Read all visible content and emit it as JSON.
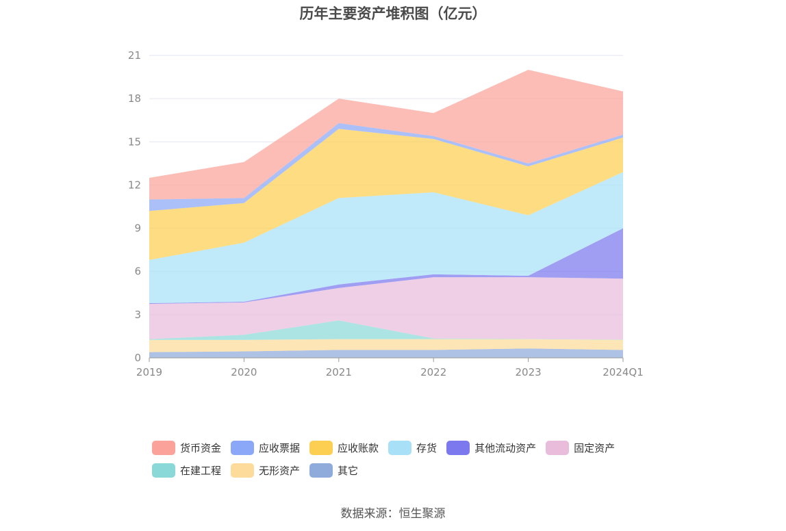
{
  "title": "历年主要资产堆积图（亿元）",
  "source": "数据来源：恒生聚源",
  "chart_data": {
    "type": "area",
    "stacked": true,
    "categories": [
      "2019",
      "2020",
      "2021",
      "2022",
      "2023",
      "2024Q1"
    ],
    "ylim": [
      0,
      21
    ],
    "yticks": [
      "0",
      "3",
      "6",
      "9",
      "12",
      "15",
      "18",
      "21"
    ],
    "grid": true,
    "legend_position": "bottom",
    "series": [
      {
        "name": "其它",
        "color": "#8fabdb",
        "values": [
          0.4,
          0.45,
          0.55,
          0.55,
          0.65,
          0.55
        ]
      },
      {
        "name": "无形资产",
        "color": "#fddb9a",
        "values": [
          0.85,
          0.8,
          0.75,
          0.75,
          0.65,
          0.7
        ]
      },
      {
        "name": "在建工程",
        "color": "#8ad9d8",
        "values": [
          0.05,
          0.35,
          1.3,
          0.05,
          0.02,
          0.02
        ]
      },
      {
        "name": "固定资产",
        "color": "#e9bcdc",
        "values": [
          2.45,
          2.25,
          2.25,
          4.25,
          4.28,
          4.23
        ]
      },
      {
        "name": "其他流动资产",
        "color": "#7c79ee",
        "values": [
          0.05,
          0.05,
          0.25,
          0.2,
          0.1,
          3.5
        ]
      },
      {
        "name": "存货",
        "color": "#a8e1f7",
        "values": [
          3.0,
          4.1,
          6.0,
          5.7,
          4.2,
          3.9
        ]
      },
      {
        "name": "应收账款",
        "color": "#fccf52",
        "values": [
          3.4,
          2.75,
          4.8,
          3.7,
          3.4,
          2.4
        ]
      },
      {
        "name": "应收票据",
        "color": "#8aa8f7",
        "values": [
          0.8,
          0.35,
          0.4,
          0.2,
          0.2,
          0.2
        ]
      },
      {
        "name": "货币资金",
        "color": "#fba39a",
        "values": [
          1.5,
          2.5,
          1.7,
          1.6,
          6.5,
          3.0
        ]
      }
    ]
  },
  "legend": [
    {
      "name": "货币资金",
      "color": "#fba39a"
    },
    {
      "name": "应收票据",
      "color": "#8aa8f7"
    },
    {
      "name": "应收账款",
      "color": "#fccf52"
    },
    {
      "name": "存货",
      "color": "#a8e1f7"
    },
    {
      "name": "其他流动资产",
      "color": "#7c79ee"
    },
    {
      "name": "固定资产",
      "color": "#e9bcdc"
    },
    {
      "name": "在建工程",
      "color": "#8ad9d8"
    },
    {
      "name": "无形资产",
      "color": "#fddb9a"
    },
    {
      "name": "其它",
      "color": "#8fabdb"
    }
  ]
}
